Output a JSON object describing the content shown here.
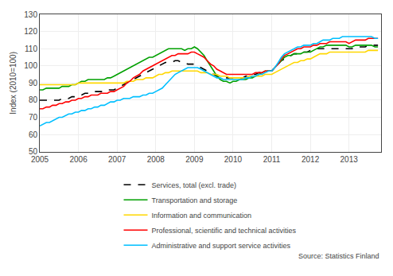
{
  "chart_data": {
    "type": "line",
    "ylabel": "Index (2010=100)",
    "annotations": [
      "Source: Statistics Finland"
    ],
    "xlim": [
      2005.0,
      2013.83
    ],
    "xticks": [
      2005,
      2006,
      2007,
      2008,
      2009,
      2010,
      2011,
      2012,
      2013
    ],
    "ylim": [
      50,
      130
    ],
    "yticks": [
      50,
      60,
      70,
      80,
      90,
      100,
      110,
      120,
      130
    ],
    "grid": true,
    "legend": "bottom",
    "x": [
      2005.0,
      2005.08,
      2005.17,
      2005.25,
      2005.33,
      2005.42,
      2005.5,
      2005.58,
      2005.67,
      2005.75,
      2005.83,
      2005.92,
      2006.0,
      2006.08,
      2006.17,
      2006.25,
      2006.33,
      2006.42,
      2006.5,
      2006.58,
      2006.67,
      2006.75,
      2006.83,
      2006.92,
      2007.0,
      2007.08,
      2007.17,
      2007.25,
      2007.33,
      2007.42,
      2007.5,
      2007.58,
      2007.67,
      2007.75,
      2007.83,
      2007.92,
      2008.0,
      2008.08,
      2008.17,
      2008.25,
      2008.33,
      2008.42,
      2008.5,
      2008.58,
      2008.67,
      2008.75,
      2008.83,
      2008.92,
      2009.0,
      2009.08,
      2009.17,
      2009.25,
      2009.33,
      2009.42,
      2009.5,
      2009.58,
      2009.67,
      2009.75,
      2009.83,
      2009.92,
      2010.0,
      2010.08,
      2010.17,
      2010.25,
      2010.33,
      2010.42,
      2010.5,
      2010.58,
      2010.67,
      2010.75,
      2010.83,
      2010.92,
      2011.0,
      2011.08,
      2011.17,
      2011.25,
      2011.33,
      2011.42,
      2011.5,
      2011.58,
      2011.67,
      2011.75,
      2011.83,
      2011.92,
      2012.0,
      2012.08,
      2012.17,
      2012.25,
      2012.33,
      2012.42,
      2012.5,
      2012.58,
      2012.67,
      2012.75,
      2012.83,
      2012.92,
      2013.0,
      2013.08,
      2013.17,
      2013.25,
      2013.33,
      2013.42,
      2013.5,
      2013.58,
      2013.67,
      2013.75
    ],
    "series": [
      {
        "name": "Services, total (excl. trade)",
        "color": "#000000",
        "line_style": "dashed",
        "values": [
          80,
          80,
          80,
          80,
          80,
          80,
          80,
          81,
          81,
          81,
          82,
          82,
          83,
          83,
          84,
          84,
          84,
          85,
          85,
          85,
          85,
          86,
          86,
          86,
          87,
          88,
          89,
          90,
          91,
          92,
          93,
          94,
          95,
          96,
          97,
          98,
          99,
          100,
          101,
          102,
          102,
          102,
          103,
          103,
          102,
          102,
          101,
          101,
          101,
          100,
          99,
          98,
          97,
          96,
          95,
          94,
          93,
          93,
          93,
          93,
          93,
          93,
          93,
          93,
          94,
          94,
          95,
          95,
          96,
          96,
          97,
          97,
          97,
          99,
          101,
          103,
          104,
          105,
          106,
          107,
          107,
          108,
          108,
          108,
          109,
          109,
          110,
          110,
          110,
          110,
          110,
          110,
          110,
          110,
          110,
          110,
          110,
          110,
          111,
          111,
          111,
          111,
          112,
          112,
          112,
          112
        ]
      },
      {
        "name": "Transportation and storage",
        "color": "#00A000",
        "line_style": "solid",
        "values": [
          86,
          86,
          87,
          87,
          87,
          87,
          87,
          88,
          88,
          88,
          89,
          89,
          90,
          91,
          91,
          92,
          92,
          92,
          92,
          92,
          92,
          93,
          93,
          94,
          95,
          96,
          97,
          98,
          99,
          100,
          101,
          102,
          103,
          104,
          105,
          105,
          106,
          107,
          108,
          109,
          110,
          110,
          110,
          110,
          110,
          109,
          110,
          110,
          111,
          110,
          108,
          106,
          103,
          100,
          97,
          94,
          92,
          91,
          91,
          90,
          91,
          91,
          92,
          92,
          92,
          93,
          93,
          94,
          95,
          96,
          97,
          97,
          97,
          99,
          101,
          103,
          105,
          106,
          106,
          107,
          107,
          107,
          108,
          108,
          108,
          109,
          110,
          111,
          111,
          112,
          112,
          112,
          112,
          112,
          112,
          112,
          111,
          111,
          112,
          112,
          112,
          112,
          112,
          112,
          111,
          111
        ]
      },
      {
        "name": "Information and communication",
        "color": "#FFD700",
        "line_style": "solid",
        "values": [
          89,
          89,
          89,
          89,
          89,
          89,
          89,
          89,
          89,
          89,
          89,
          89,
          90,
          90,
          90,
          90,
          90,
          90,
          90,
          90,
          90,
          90,
          90,
          90,
          90,
          90,
          90,
          91,
          91,
          91,
          92,
          92,
          92,
          93,
          93,
          93,
          94,
          95,
          95,
          96,
          96,
          97,
          97,
          97,
          97,
          97,
          97,
          97,
          97,
          97,
          96,
          96,
          96,
          95,
          95,
          95,
          94,
          94,
          94,
          93,
          93,
          93,
          93,
          93,
          93,
          94,
          94,
          94,
          94,
          94,
          95,
          95,
          95,
          96,
          97,
          98,
          99,
          100,
          101,
          102,
          102,
          103,
          103,
          104,
          104,
          105,
          106,
          107,
          107,
          107,
          108,
          108,
          108,
          108,
          108,
          108,
          108,
          108,
          108,
          108,
          108,
          108,
          109,
          109,
          109,
          109
        ]
      },
      {
        "name": "Professional, scientific and technical activities",
        "color": "#FF0000",
        "line_style": "solid",
        "values": [
          75,
          75,
          76,
          76,
          77,
          77,
          78,
          78,
          79,
          79,
          80,
          80,
          81,
          81,
          82,
          82,
          83,
          83,
          83,
          84,
          84,
          84,
          85,
          85,
          86,
          87,
          88,
          90,
          91,
          93,
          94,
          95,
          97,
          98,
          99,
          100,
          101,
          102,
          103,
          104,
          105,
          106,
          106,
          107,
          107,
          107,
          107,
          108,
          108,
          107,
          106,
          105,
          103,
          101,
          100,
          98,
          97,
          96,
          95,
          95,
          95,
          95,
          95,
          95,
          95,
          95,
          95,
          96,
          96,
          96,
          97,
          97,
          97,
          99,
          101,
          104,
          106,
          107,
          108,
          109,
          110,
          110,
          111,
          111,
          111,
          112,
          112,
          113,
          113,
          113,
          114,
          114,
          114,
          114,
          114,
          114,
          113,
          114,
          115,
          115,
          115,
          115,
          116,
          116,
          116,
          116
        ]
      },
      {
        "name": "Administrative and support service activities",
        "color": "#00BFFF",
        "line_style": "solid",
        "values": [
          65,
          66,
          67,
          67,
          68,
          69,
          70,
          70,
          71,
          72,
          72,
          73,
          73,
          74,
          74,
          75,
          75,
          76,
          76,
          77,
          77,
          78,
          79,
          79,
          80,
          80,
          81,
          81,
          81,
          82,
          82,
          82,
          83,
          83,
          84,
          84,
          85,
          86,
          87,
          89,
          91,
          93,
          95,
          96,
          97,
          98,
          99,
          99,
          99,
          99,
          98,
          97,
          96,
          95,
          94,
          93,
          93,
          92,
          92,
          92,
          92,
          92,
          92,
          92,
          93,
          93,
          94,
          94,
          95,
          95,
          96,
          97,
          97,
          99,
          102,
          105,
          107,
          108,
          109,
          110,
          111,
          111,
          112,
          112,
          112,
          113,
          113,
          114,
          115,
          115,
          115,
          116,
          116,
          116,
          117,
          117,
          117,
          117,
          117,
          117,
          117,
          117,
          117,
          117,
          116,
          116
        ]
      }
    ]
  }
}
